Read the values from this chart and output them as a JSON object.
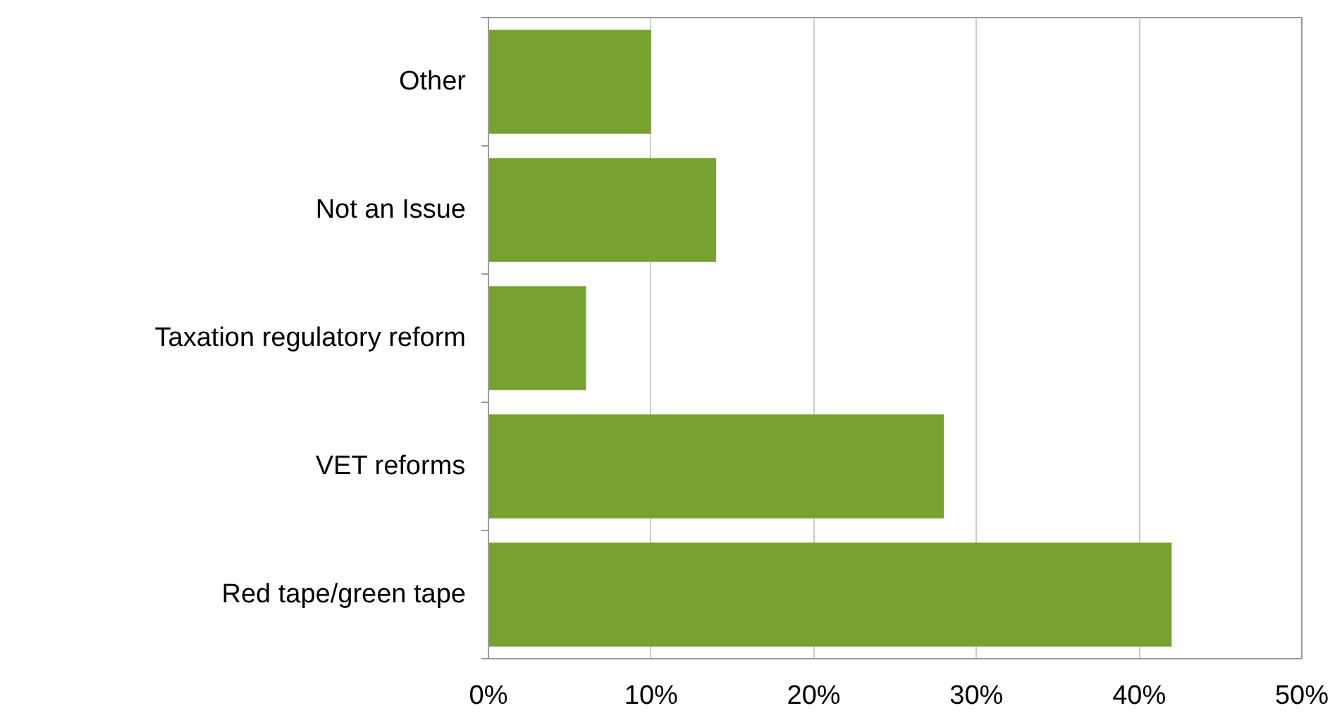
{
  "chart_data": {
    "type": "bar",
    "orientation": "horizontal",
    "categories": [
      "Other",
      "Not an Issue",
      "Taxation regulatory reform",
      "VET reforms",
      "Red tape/green tape"
    ],
    "values": [
      10,
      14,
      6,
      28,
      42
    ],
    "color": "#78a22f",
    "xlim": [
      0,
      50
    ],
    "xticks": [
      {
        "value": 0,
        "label": "0%"
      },
      {
        "value": 10,
        "label": "10%"
      },
      {
        "value": 20,
        "label": "20%"
      },
      {
        "value": 30,
        "label": "30%"
      },
      {
        "value": 40,
        "label": "40%"
      },
      {
        "value": 50,
        "label": "50%"
      }
    ],
    "grid": "x"
  }
}
